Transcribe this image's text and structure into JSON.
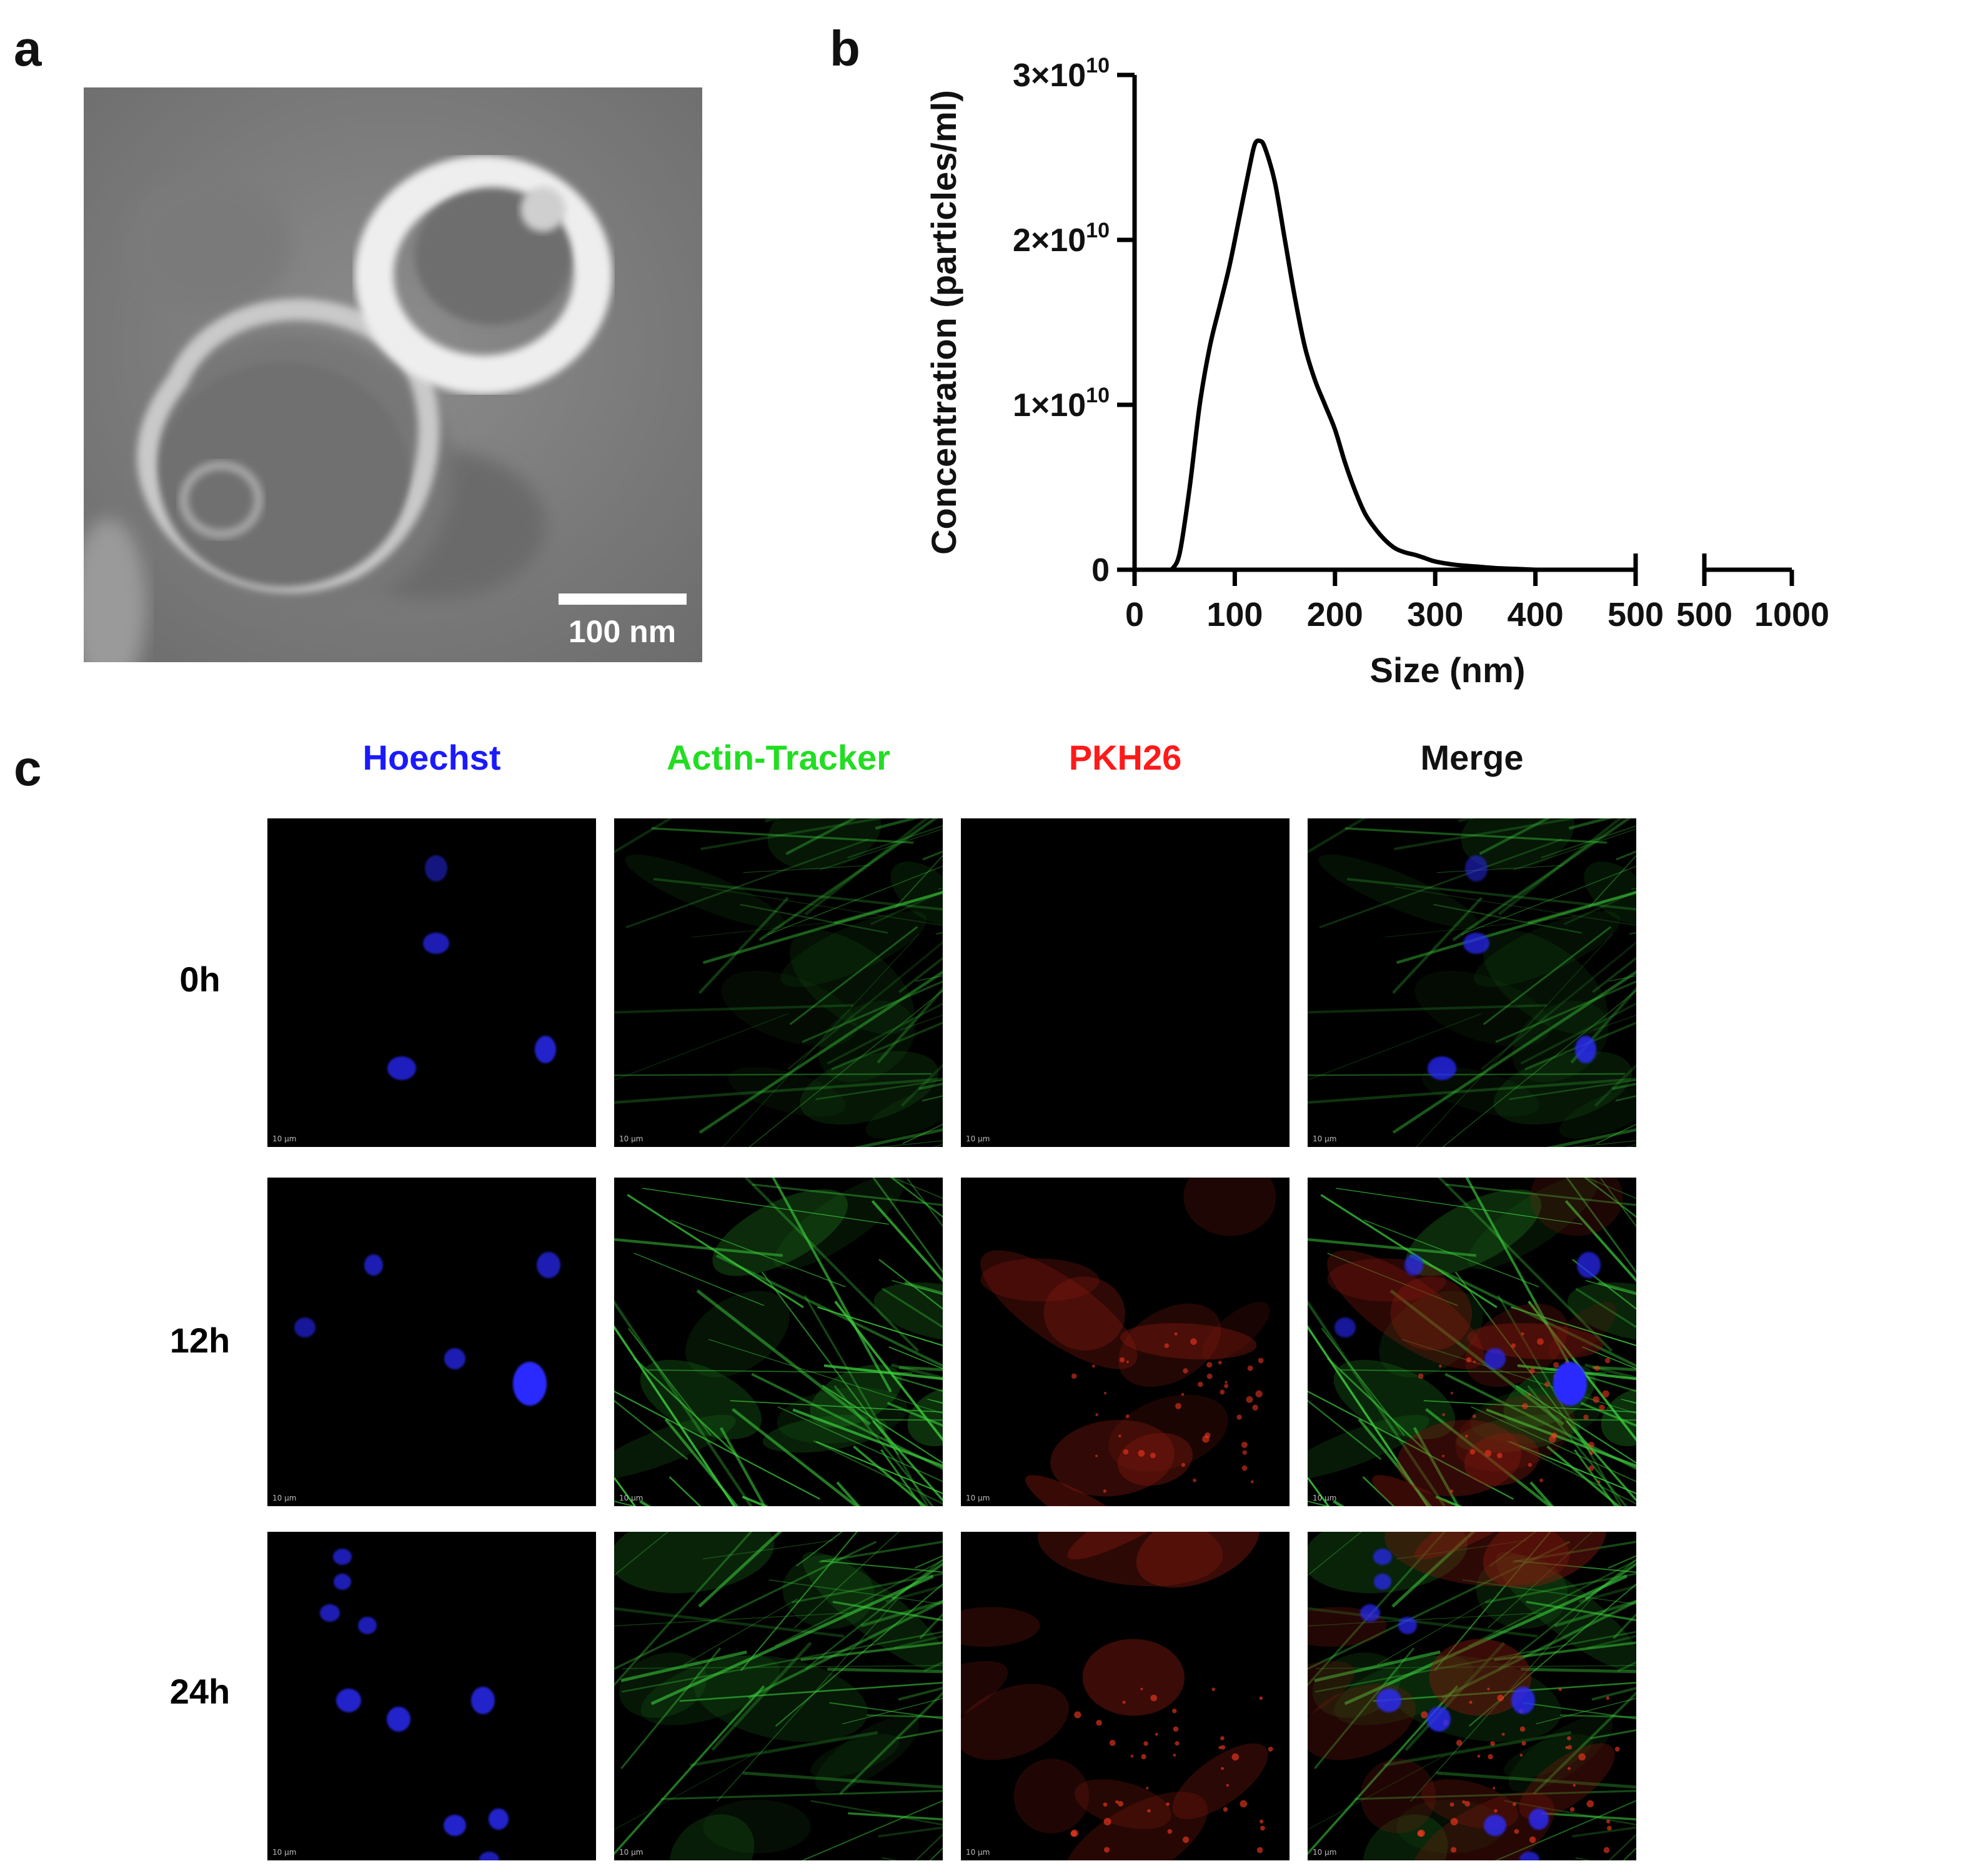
{
  "figure": {
    "panel_labels": {
      "a": "a",
      "b": "b",
      "c": "c"
    }
  },
  "panel_a": {
    "scale_bar_label": "100 nm"
  },
  "panel_b": {
    "chart_data": {
      "type": "line",
      "xlabel": "Size (nm)",
      "ylabel": "Concentration (particles/ml)",
      "xlim": [
        0,
        500
      ],
      "ylim": [
        0,
        30000000000
      ],
      "x_ticks": [
        "0",
        "100",
        "200",
        "300",
        "400",
        "500"
      ],
      "x_break_ticks": [
        "500",
        "1000"
      ],
      "y_ticks": [
        {
          "base": "0",
          "exp": ""
        },
        {
          "base": "1×10",
          "exp": "10"
        },
        {
          "base": "2×10",
          "exp": "10"
        },
        {
          "base": "3×10",
          "exp": "10"
        }
      ],
      "series": [
        {
          "x": [
            37,
            45,
            55,
            65,
            75,
            85,
            95,
            105,
            115,
            120,
            125,
            130,
            140,
            150,
            160,
            170,
            180,
            190,
            200,
            210,
            220,
            230,
            240,
            250,
            260,
            270,
            280,
            290,
            300,
            320,
            340,
            360,
            380,
            400
          ],
          "y": [
            0,
            1000000000,
            5000000000,
            10000000000,
            13500000000,
            16000000000,
            18500000000,
            21500000000,
            24500000000,
            25800000000,
            26000000000,
            25600000000,
            23500000000,
            20000000000,
            16500000000,
            13500000000,
            11500000000,
            10000000000,
            8500000000,
            6500000000,
            4800000000,
            3400000000,
            2500000000,
            1800000000,
            1300000000,
            1050000000,
            900000000,
            700000000,
            500000000,
            300000000,
            200000000,
            100000000,
            50000000,
            0
          ]
        }
      ]
    }
  },
  "panel_c": {
    "columns": [
      {
        "label": "Hoechst",
        "color": "#1a1aff"
      },
      {
        "label": "Actin-Tracker",
        "color": "#22dd22"
      },
      {
        "label": "PKH26",
        "color": "#ff1a1a"
      },
      {
        "label": "Merge",
        "color": "#111111"
      }
    ],
    "rows": [
      {
        "label": "0h"
      },
      {
        "label": "12h"
      },
      {
        "label": "24h"
      }
    ],
    "scale_label": "10 µm"
  }
}
